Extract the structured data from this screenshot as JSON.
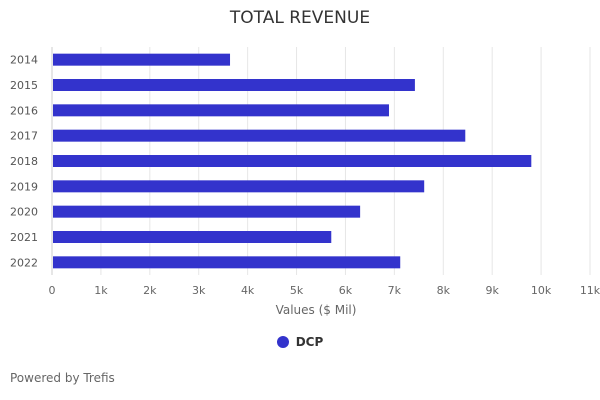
{
  "chart_data": {
    "type": "bar",
    "orientation": "horizontal",
    "title": "TOTAL REVENUE",
    "xlabel": "Values ($ Mil)",
    "ylabel": "",
    "categories": [
      "2014",
      "2015",
      "2016",
      "2017",
      "2018",
      "2019",
      "2020",
      "2021",
      "2022"
    ],
    "series": [
      {
        "name": "DCP",
        "color": "#3333cc",
        "values": [
          3640,
          7420,
          6890,
          8450,
          9800,
          7610,
          6300,
          5710,
          7120
        ]
      }
    ],
    "xlim": [
      0,
      11000
    ],
    "xticks": [
      "0",
      "1k",
      "2k",
      "3k",
      "4k",
      "5k",
      "6k",
      "7k",
      "8k",
      "9k",
      "10k",
      "11k"
    ],
    "grid": true,
    "legend_position": "bottom"
  },
  "footer": "Powered by Trefis"
}
